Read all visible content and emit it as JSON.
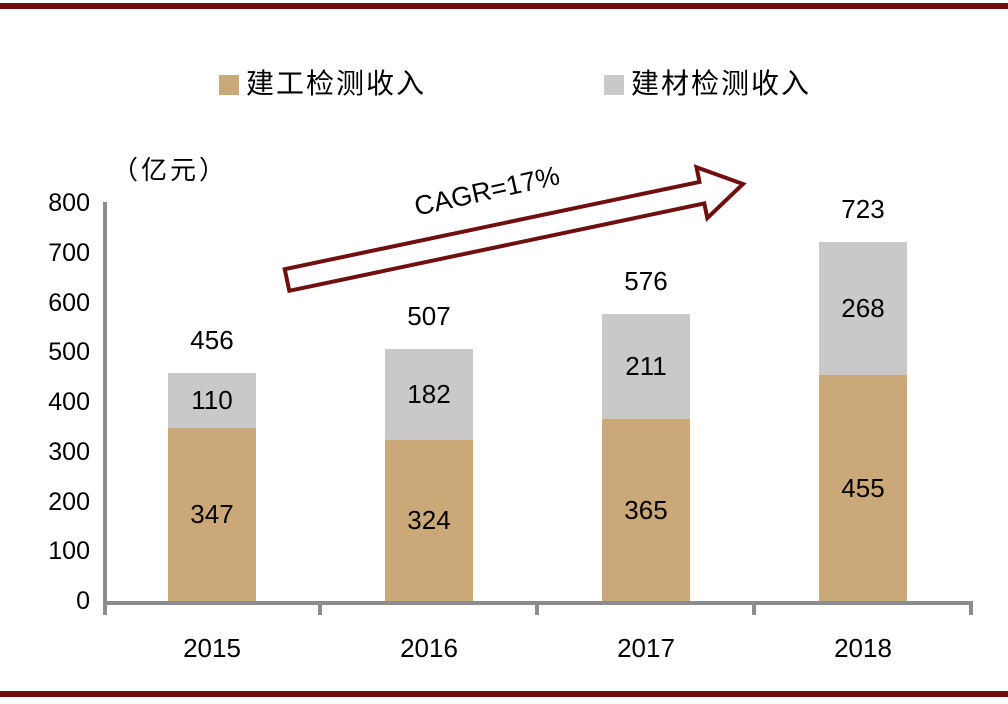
{
  "chart_data": {
    "type": "bar",
    "stacked": true,
    "unit_label": "（亿元）",
    "categories": [
      "2015",
      "2016",
      "2017",
      "2018"
    ],
    "series": [
      {
        "name": "建工检测收入",
        "color": "#CBA877",
        "values": [
          347,
          324,
          365,
          455
        ]
      },
      {
        "name": "建材检测收入",
        "color": "#C9C9C9",
        "values": [
          110,
          182,
          211,
          268
        ]
      }
    ],
    "totals": [
      456,
      507,
      576,
      723
    ],
    "annotation": "CAGR=17%",
    "y_axis": {
      "min": 0,
      "max": 800,
      "step": 100,
      "tick_labels": [
        "0",
        "100",
        "200",
        "300",
        "400",
        "500",
        "600",
        "700",
        "800"
      ]
    },
    "legend_position": "top",
    "grid": false
  },
  "legend": {
    "items": [
      {
        "label": "建工检测收入",
        "color": "#CBA877"
      },
      {
        "label": "建材检测收入",
        "color": "#C9C9C9"
      }
    ]
  },
  "colors": {
    "bar_tan": "#CBA877",
    "bar_gray": "#C9C9C9",
    "axis_gray": "#8C8C8C",
    "accent_maroon": "#6F0F10",
    "text": "#000000"
  }
}
